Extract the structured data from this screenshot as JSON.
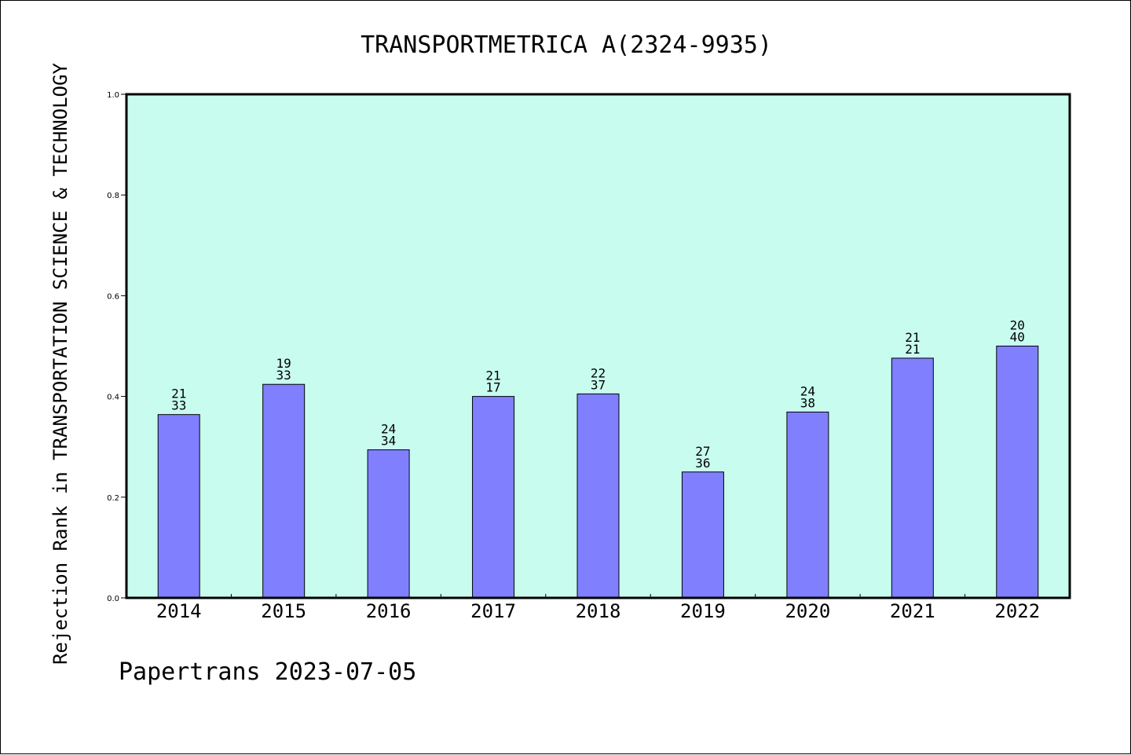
{
  "chart_data": {
    "type": "bar",
    "title": "TRANSPORTMETRICA A(2324-9935)",
    "xlabel": "",
    "ylabel": "Rejection Rank in TRANSPORTATION SCIENCE & TECHNOLOGY",
    "ylim": [
      0.0,
      1.0
    ],
    "yticks": [
      "0.0",
      "0.2",
      "0.4",
      "0.6",
      "0.8",
      "1.0"
    ],
    "grid": false,
    "categories": [
      "2014",
      "2015",
      "2016",
      "2017",
      "2018",
      "2019",
      "2020",
      "2021",
      "2022"
    ],
    "values": [
      0.364,
      0.424,
      0.294,
      0.4,
      0.405,
      0.25,
      0.369,
      0.476,
      0.5
    ],
    "label_top": [
      "21",
      "19",
      "24",
      "21",
      "22",
      "27",
      "24",
      "21",
      "20"
    ],
    "label_bottom": [
      "33",
      "33",
      "34",
      "17",
      "37",
      "36",
      "38",
      "21",
      "40"
    ],
    "bar_color": "#8080ff",
    "plot_bg": "#c8fcee"
  },
  "footer": "Papertrans 2023-07-05"
}
